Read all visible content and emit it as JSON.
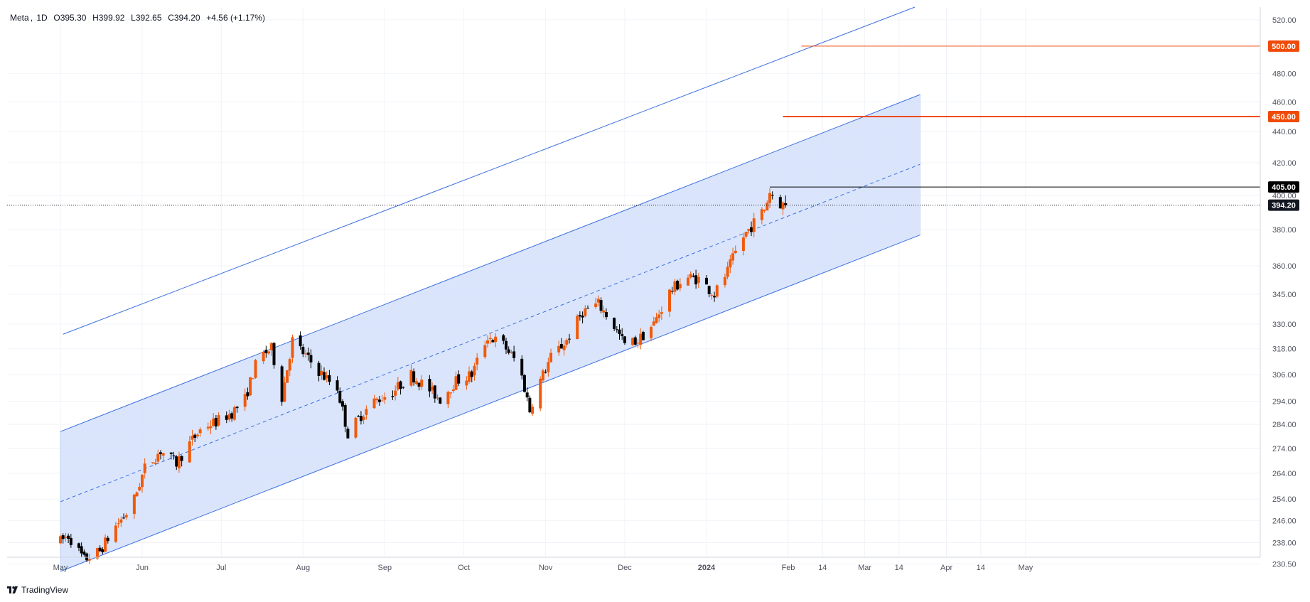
{
  "legend": {
    "symbol": "Meta",
    "interval": "1D",
    "open": "O395.30",
    "high": "H399.92",
    "low": "L392.65",
    "close": "C394.20",
    "change": "+4.56 (+1.17%)"
  },
  "branding": {
    "name": "TradingView",
    "icon": "tradingview-logo-icon"
  },
  "colors": {
    "up": "#f05a0a",
    "down": "#000000",
    "channel_line": "#3d6fe0",
    "channel_fill": "#d4e0fb",
    "target_line": "#f04a08",
    "grid": "#f0f3f8",
    "axis_text": "#50535e"
  },
  "chart_data": {
    "type": "candlestick",
    "symbol": "Meta",
    "interval": "1D",
    "scale": "log",
    "x_axis_labels": [
      "May",
      "Jun",
      "Jul",
      "Aug",
      "Sep",
      "Oct",
      "Nov",
      "Dec",
      "2024",
      "Feb",
      "14",
      "Mar",
      "14",
      "Apr",
      "14",
      "May"
    ],
    "y_axis_labels": [
      "520.00",
      "480.00",
      "460.00",
      "440.00",
      "420.00",
      "400.00",
      "380.00",
      "360.00",
      "345.00",
      "330.00",
      "318.00",
      "306.00",
      "294.00",
      "284.00",
      "274.00",
      "264.00",
      "254.00",
      "246.00",
      "238.00",
      "230.50"
    ],
    "y_range": [
      227,
      530
    ],
    "last_price": {
      "value": 394.2,
      "label": "394.20"
    },
    "horizontal_levels": [
      {
        "name": "target-500",
        "value": 500.0,
        "label": "500.00",
        "start_date": "2024-02-06"
      },
      {
        "name": "target-450",
        "value": 450.0,
        "label": "450.00",
        "start_date": "2024-01-30"
      },
      {
        "name": "high-405",
        "value": 405.0,
        "label": "405.00",
        "start_date": "2024-01-25"
      }
    ],
    "regression_channel": {
      "start_date": "2023-05-01",
      "end_date": "2024-03-22",
      "middle": [
        253,
        419
      ],
      "upper": [
        281,
        465
      ],
      "lower": [
        228,
        377
      ],
      "outer_upper": {
        "start_date": "2023-05-02",
        "end_date": "2024-03-20",
        "values": [
          325,
          530
        ]
      }
    },
    "anchors": [
      [
        "2023-05-01",
        238.5
      ],
      [
        "2023-05-04",
        240.5
      ],
      [
        "2023-05-10",
        232.0
      ],
      [
        "2023-05-16",
        235.0
      ],
      [
        "2023-05-22",
        244.0
      ],
      [
        "2023-05-28",
        251.0
      ],
      [
        "2023-06-02",
        266.0
      ],
      [
        "2023-06-08",
        273.0
      ],
      [
        "2023-06-14",
        268.0
      ],
      [
        "2023-06-19",
        276.0
      ],
      [
        "2023-06-24",
        283.0
      ],
      [
        "2023-06-29",
        285.0
      ],
      [
        "2023-07-05",
        289.0
      ],
      [
        "2023-07-10",
        295.0
      ],
      [
        "2023-07-15",
        314.0
      ],
      [
        "2023-07-20",
        318.0
      ],
      [
        "2023-07-24",
        296.0
      ],
      [
        "2023-07-28",
        322.0
      ],
      [
        "2023-08-03",
        313.0
      ],
      [
        "2023-08-09",
        305.0
      ],
      [
        "2023-08-14",
        300.0
      ],
      [
        "2023-08-18",
        280.0
      ],
      [
        "2023-08-23",
        288.0
      ],
      [
        "2023-08-28",
        294.0
      ],
      [
        "2023-09-04",
        298.0
      ],
      [
        "2023-09-11",
        306.0
      ],
      [
        "2023-09-17",
        300.0
      ],
      [
        "2023-09-22",
        295.0
      ],
      [
        "2023-09-28",
        303.0
      ],
      [
        "2023-10-04",
        306.0
      ],
      [
        "2023-10-10",
        324.0
      ],
      [
        "2023-10-16",
        320.0
      ],
      [
        "2023-10-22",
        310.0
      ],
      [
        "2023-10-26",
        290.0
      ],
      [
        "2023-10-28",
        298.0
      ],
      [
        "2023-11-03",
        314.0
      ],
      [
        "2023-11-09",
        322.0
      ],
      [
        "2023-11-15",
        336.0
      ],
      [
        "2023-11-21",
        340.0
      ],
      [
        "2023-11-26",
        331.0
      ],
      [
        "2023-12-01",
        320.0
      ],
      [
        "2023-12-06",
        322.0
      ],
      [
        "2023-12-12",
        330.0
      ],
      [
        "2023-12-18",
        346.0
      ],
      [
        "2023-12-24",
        354.0
      ],
      [
        "2023-12-29",
        353.0
      ],
      [
        "2024-01-04",
        345.0
      ],
      [
        "2024-01-09",
        357.0
      ],
      [
        "2024-01-14",
        374.0
      ],
      [
        "2024-01-19",
        384.0
      ],
      [
        "2024-01-23",
        392.0
      ],
      [
        "2024-01-25",
        402.0
      ],
      [
        "2024-01-29",
        395.0
      ],
      [
        "2024-01-31",
        394.2
      ]
    ],
    "last_candle": {
      "date": "2024-01-31",
      "open": 395.3,
      "high": 399.92,
      "low": 392.65,
      "close": 394.2
    }
  }
}
